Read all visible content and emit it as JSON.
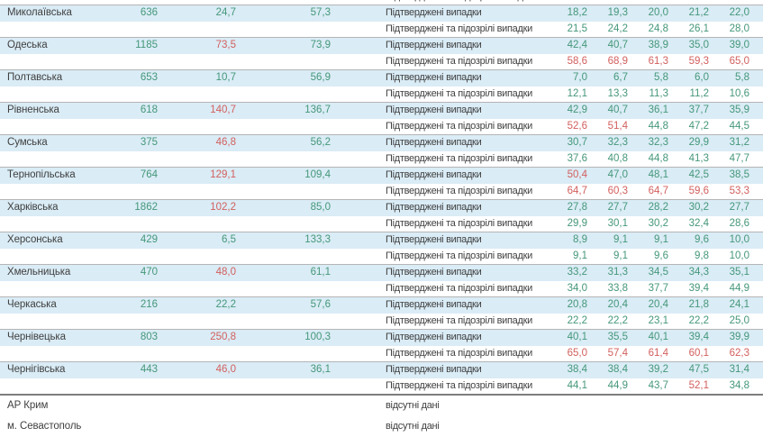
{
  "colors": {
    "green_value": "#459779",
    "red_value": "#d2605e",
    "striped_row_bg": "#daecf6",
    "text_dark": "#3f3f3f",
    "group_border": "#b5b5b5",
    "section_border": "#7e7e7e"
  },
  "labels": {
    "confirmed": "Підтверджені випадки",
    "confirmed_suspected": "Підтверджені та підозрілі випадки",
    "no_data": "відсутні дані"
  },
  "chart_data": {
    "type": "table",
    "legend": "Each region group: blue row = confirmed cases, white row = confirmed and suspected cases; columns = region name, total count, rate 1, rate 2, case-type label, five weekly values",
    "regions": [
      {
        "name": "Миколаївська",
        "total": "636",
        "rate1": "24,7",
        "rate1_red": false,
        "rate2": "57,3",
        "confirmed": [
          "18,2",
          "19,3",
          "20,0",
          "21,2",
          "22,0"
        ],
        "confirmed_red": [],
        "suspected": [
          "21,5",
          "24,2",
          "24,8",
          "26,1",
          "28,0"
        ],
        "suspected_red": []
      },
      {
        "name": "Одеська",
        "total": "1185",
        "rate1": "73,5",
        "rate1_red": true,
        "rate2": "73,9",
        "confirmed": [
          "42,4",
          "40,7",
          "38,9",
          "35,0",
          "39,0"
        ],
        "confirmed_red": [],
        "suspected": [
          "58,6",
          "68,9",
          "61,3",
          "59,3",
          "65,0"
        ],
        "suspected_red": [
          0,
          1,
          2,
          3,
          4
        ]
      },
      {
        "name": "Полтавська",
        "total": "653",
        "rate1": "10,7",
        "rate1_red": false,
        "rate2": "56,9",
        "confirmed": [
          "7,0",
          "6,7",
          "5,8",
          "6,0",
          "5,8"
        ],
        "confirmed_red": [],
        "suspected": [
          "12,1",
          "13,3",
          "11,3",
          "11,2",
          "10,6"
        ],
        "suspected_red": []
      },
      {
        "name": "Рівненська",
        "total": "618",
        "rate1": "140,7",
        "rate1_red": true,
        "rate2": "136,7",
        "confirmed": [
          "42,9",
          "40,7",
          "36,1",
          "37,7",
          "35,9"
        ],
        "confirmed_red": [],
        "suspected": [
          "52,6",
          "51,4",
          "44,8",
          "47,2",
          "44,5"
        ],
        "suspected_red": [
          0,
          1
        ]
      },
      {
        "name": "Сумська",
        "total": "375",
        "rate1": "46,8",
        "rate1_red": true,
        "rate2": "56,2",
        "confirmed": [
          "30,7",
          "32,3",
          "32,3",
          "29,9",
          "31,2"
        ],
        "confirmed_red": [],
        "suspected": [
          "37,6",
          "40,8",
          "44,8",
          "41,3",
          "47,7"
        ],
        "suspected_red": []
      },
      {
        "name": "Тернопільська",
        "total": "764",
        "rate1": "129,1",
        "rate1_red": true,
        "rate2": "109,4",
        "confirmed": [
          "50,4",
          "47,0",
          "48,1",
          "42,5",
          "38,5"
        ],
        "confirmed_red": [
          0
        ],
        "suspected": [
          "64,7",
          "60,3",
          "64,7",
          "59,6",
          "53,3"
        ],
        "suspected_red": [
          0,
          1,
          2,
          3,
          4
        ]
      },
      {
        "name": "Харківська",
        "total": "1862",
        "rate1": "102,2",
        "rate1_red": true,
        "rate2": "85,0",
        "confirmed": [
          "27,8",
          "27,7",
          "28,2",
          "30,2",
          "27,7"
        ],
        "confirmed_red": [],
        "suspected": [
          "29,9",
          "30,1",
          "30,2",
          "32,4",
          "28,6"
        ],
        "suspected_red": []
      },
      {
        "name": "Херсонська",
        "total": "429",
        "rate1": "6,5",
        "rate1_red": false,
        "rate2": "133,3",
        "confirmed": [
          "8,9",
          "9,1",
          "9,1",
          "9,6",
          "10,0"
        ],
        "confirmed_red": [],
        "suspected": [
          "9,1",
          "9,1",
          "9,6",
          "9,8",
          "10,0"
        ],
        "suspected_red": []
      },
      {
        "name": "Хмельницька",
        "total": "470",
        "rate1": "48,0",
        "rate1_red": true,
        "rate2": "61,1",
        "confirmed": [
          "33,2",
          "31,3",
          "34,5",
          "34,3",
          "35,1"
        ],
        "confirmed_red": [],
        "suspected": [
          "34,0",
          "33,8",
          "37,7",
          "39,4",
          "44,9"
        ],
        "suspected_red": []
      },
      {
        "name": "Черкаська",
        "total": "216",
        "rate1": "22,2",
        "rate1_red": false,
        "rate2": "57,6",
        "confirmed": [
          "20,8",
          "20,4",
          "20,4",
          "21,8",
          "24,1"
        ],
        "confirmed_red": [],
        "suspected": [
          "22,2",
          "22,2",
          "23,1",
          "22,2",
          "25,0"
        ],
        "suspected_red": []
      },
      {
        "name": "Чернівецька",
        "total": "803",
        "rate1": "250,8",
        "rate1_red": true,
        "rate2": "100,3",
        "confirmed": [
          "40,1",
          "35,5",
          "40,1",
          "39,4",
          "39,9"
        ],
        "confirmed_red": [],
        "suspected": [
          "65,0",
          "57,4",
          "61,4",
          "60,1",
          "62,3"
        ],
        "suspected_red": [
          0,
          1,
          2,
          3,
          4
        ]
      },
      {
        "name": "Чернігівська",
        "total": "443",
        "rate1": "46,0",
        "rate1_red": true,
        "rate2": "36,1",
        "confirmed": [
          "38,4",
          "38,4",
          "39,2",
          "47,5",
          "31,4"
        ],
        "confirmed_red": [],
        "suspected": [
          "44,1",
          "44,9",
          "43,7",
          "52,1",
          "34,8"
        ],
        "suspected_red": [
          3
        ]
      }
    ],
    "no_data_regions": [
      {
        "name": "АР Крим"
      },
      {
        "name": "м. Севастополь"
      }
    ]
  }
}
